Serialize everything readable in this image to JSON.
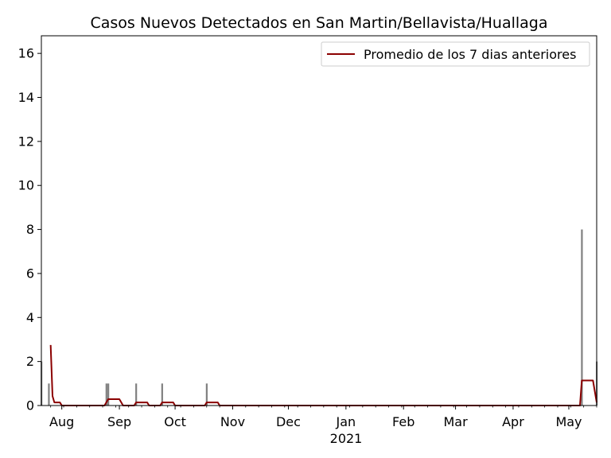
{
  "chart_data": {
    "type": "bar",
    "title": "Casos Nuevos Detectados en San Martin/Bellavista/Huallaga",
    "xlabel": "",
    "ylabel": "",
    "x_year_label": "2021",
    "xlim": [
      "2020-07-21",
      "2021-05-16"
    ],
    "ylim": [
      0,
      16.8
    ],
    "yticks": [
      0,
      2,
      4,
      6,
      8,
      10,
      12,
      14,
      16
    ],
    "xticks": [
      {
        "date": "2020-08-01",
        "label": "Aug"
      },
      {
        "date": "2020-09-01",
        "label": "Sep"
      },
      {
        "date": "2020-10-01",
        "label": "Oct"
      },
      {
        "date": "2020-11-01",
        "label": "Nov"
      },
      {
        "date": "2020-12-01",
        "label": "Dec"
      },
      {
        "date": "2021-01-01",
        "label": "Jan"
      },
      {
        "date": "2021-02-01",
        "label": "Feb"
      },
      {
        "date": "2021-03-01",
        "label": "Mar"
      },
      {
        "date": "2021-04-01",
        "label": "Apr"
      },
      {
        "date": "2021-05-01",
        "label": "May"
      }
    ],
    "grid": false,
    "legend_position": "top-right",
    "bar_color": "#808080",
    "line_color": "#8b0000",
    "bars": [
      {
        "date": "2020-07-21",
        "value": 2
      },
      {
        "date": "2020-07-25",
        "value": 1
      },
      {
        "date": "2020-08-25",
        "value": 1
      },
      {
        "date": "2020-08-26",
        "value": 1
      },
      {
        "date": "2020-09-10",
        "value": 1
      },
      {
        "date": "2020-09-24",
        "value": 1
      },
      {
        "date": "2020-10-18",
        "value": 1
      },
      {
        "date": "2021-05-08",
        "value": 8
      },
      {
        "date": "2021-05-16",
        "value": 2
      }
    ],
    "series": [
      {
        "name": "Promedio de los 7 dias anteriores",
        "type": "line",
        "points": [
          {
            "date": "2020-07-26",
            "value": 2.75
          },
          {
            "date": "2020-07-27",
            "value": 0.43
          },
          {
            "date": "2020-07-28",
            "value": 0.14
          },
          {
            "date": "2020-07-31",
            "value": 0.14
          },
          {
            "date": "2020-08-01",
            "value": 0
          },
          {
            "date": "2020-08-24",
            "value": 0
          },
          {
            "date": "2020-08-26",
            "value": 0.29
          },
          {
            "date": "2020-09-01",
            "value": 0.29
          },
          {
            "date": "2020-09-03",
            "value": 0
          },
          {
            "date": "2020-09-09",
            "value": 0
          },
          {
            "date": "2020-09-10",
            "value": 0.14
          },
          {
            "date": "2020-09-16",
            "value": 0.14
          },
          {
            "date": "2020-09-17",
            "value": 0
          },
          {
            "date": "2020-09-23",
            "value": 0
          },
          {
            "date": "2020-09-24",
            "value": 0.14
          },
          {
            "date": "2020-09-30",
            "value": 0.14
          },
          {
            "date": "2020-10-01",
            "value": 0
          },
          {
            "date": "2020-10-17",
            "value": 0
          },
          {
            "date": "2020-10-18",
            "value": 0.14
          },
          {
            "date": "2020-10-24",
            "value": 0.14
          },
          {
            "date": "2020-10-25",
            "value": 0
          },
          {
            "date": "2021-05-07",
            "value": 0
          },
          {
            "date": "2021-05-08",
            "value": 1.14
          },
          {
            "date": "2021-05-14",
            "value": 1.14
          },
          {
            "date": "2021-05-16",
            "value": 0.14
          }
        ]
      }
    ]
  }
}
